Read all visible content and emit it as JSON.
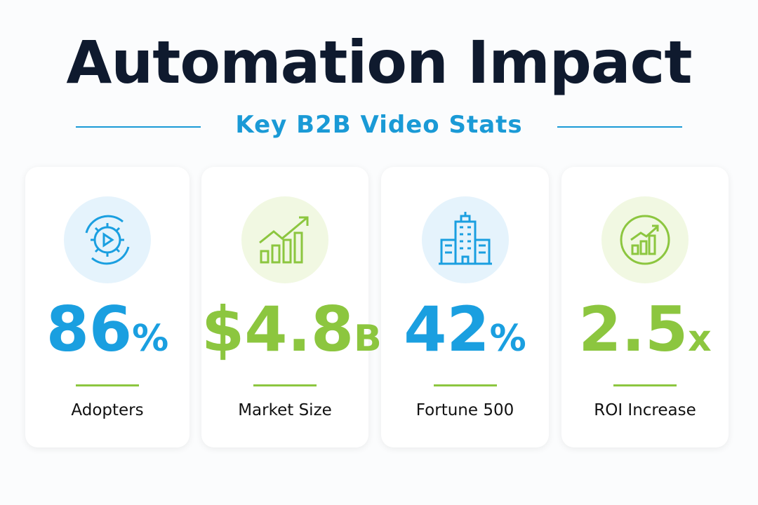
{
  "header": {
    "title": "Automation Impact",
    "subtitle": "Key B2B Video Stats"
  },
  "cards": [
    {
      "number": "86",
      "unit": "%",
      "label": "Adopters",
      "accent": "#1a9fe0",
      "tint": "#e5f3fc"
    },
    {
      "number": "$4.8",
      "unit": "B",
      "label": "Market Size",
      "accent": "#8cc63f",
      "tint": "#f1f8e2"
    },
    {
      "number": "42",
      "unit": "%",
      "label": "Fortune 500",
      "accent": "#1a9fe0",
      "tint": "#e5f3fc"
    },
    {
      "number": "2.5",
      "unit": "x",
      "label": "ROI Increase",
      "accent": "#8cc63f",
      "tint": "#f1f8e2"
    }
  ]
}
